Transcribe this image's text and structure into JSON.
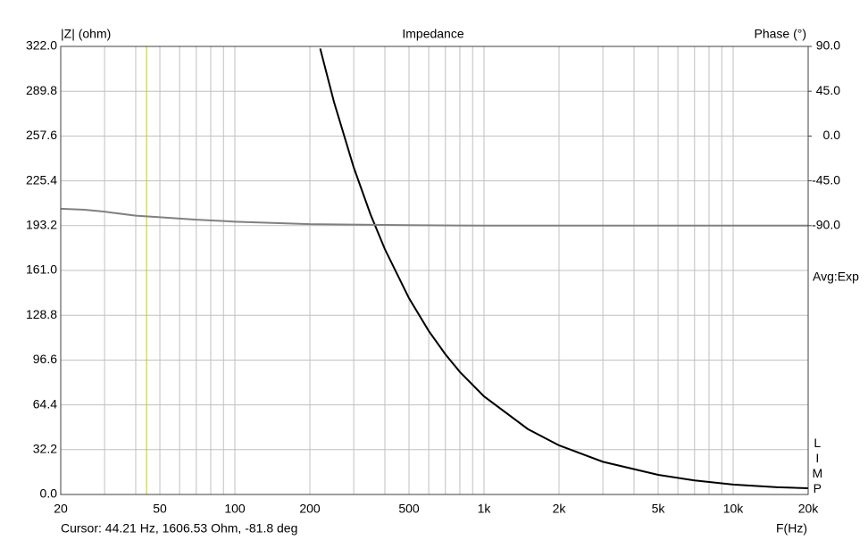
{
  "chart_data": {
    "type": "line",
    "title": "Impedance",
    "y_label": "|Z| (ohm)",
    "y2_label": "Phase (°)",
    "x_label": "F(Hz)",
    "averaging": "Avg:Exp",
    "program": "LIMP",
    "cursor": {
      "label": "Cursor: 44.21 Hz, 1606.53 Ohm, -81.8 deg",
      "x": 44.21,
      "color": "#c8c800"
    },
    "xscale": "log",
    "xlim": [
      20,
      20000
    ],
    "xticks": [
      20,
      50,
      100,
      200,
      500,
      {
        "value": 1000,
        "label": "1k"
      },
      {
        "value": 2000,
        "label": "2k"
      },
      {
        "value": 5000,
        "label": "5k"
      },
      {
        "value": 10000,
        "label": "10k"
      },
      {
        "value": 20000,
        "label": "20k"
      }
    ],
    "xminorticks": [
      30,
      40,
      60,
      70,
      80,
      90,
      300,
      400,
      600,
      700,
      800,
      900,
      3000,
      4000,
      6000,
      7000,
      8000,
      9000
    ],
    "ylim": [
      0,
      322
    ],
    "yticks": [
      {
        "value": 0,
        "label": "0.0"
      },
      32.2,
      64.4,
      96.6,
      128.8,
      {
        "value": 161,
        "label": "161.0"
      },
      193.2,
      225.4,
      257.6,
      289.8,
      {
        "value": 322,
        "label": "322.0"
      }
    ],
    "y2lim": [
      -360,
      90
    ],
    "y2ticks": [
      {
        "value": 90,
        "label": "90.0"
      },
      {
        "value": 45,
        "label": "45.0"
      },
      {
        "value": 0,
        "label": "0.0"
      },
      {
        "value": -45,
        "label": "-45.0"
      },
      {
        "value": -90,
        "label": "-90.0"
      }
    ],
    "grid": true,
    "series": [
      {
        "name": "Impedance",
        "color": "#000000",
        "x": [
          220,
          250,
          300,
          350,
          400,
          500,
          600,
          700,
          800,
          1000,
          1500,
          2000,
          3000,
          5000,
          7000,
          10000,
          15000,
          20000
        ],
        "values": [
          320.5,
          282,
          235,
          201.4,
          176.3,
          141,
          117.5,
          100.7,
          88.1,
          70.5,
          47,
          35.3,
          23.5,
          14.1,
          10.1,
          7.1,
          5.2,
          4.5
        ]
      },
      {
        "name": "Phase",
        "color": "#808080",
        "axis": "y2",
        "x": [
          20,
          25,
          30,
          40,
          50,
          70,
          100,
          200,
          500,
          1000,
          20000
        ],
        "values": [
          -73,
          -74,
          -76,
          -80,
          -81.5,
          -84,
          -86,
          -88.5,
          -89.5,
          -90,
          -90
        ]
      }
    ]
  }
}
